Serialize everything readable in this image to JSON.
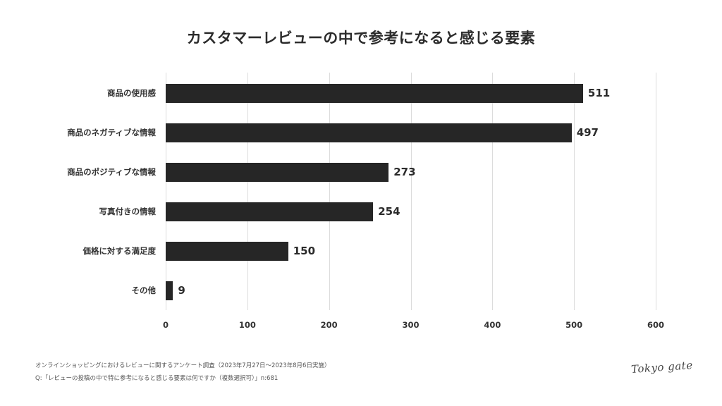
{
  "chart_data": {
    "type": "bar",
    "orientation": "horizontal",
    "title": "カスタマーレビューの中で参考になると感じる要素",
    "categories": [
      "商品の使用感",
      "商品のネガティブな情報",
      "商品のポジティブな情報",
      "写真付きの情報",
      "価格に対する満足度",
      "その他"
    ],
    "values": [
      511,
      497,
      273,
      254,
      150,
      9
    ],
    "value_labels": [
      "511",
      "497",
      "273",
      "254",
      "150",
      "9"
    ],
    "xlabel": "",
    "ylabel": "",
    "xlim": [
      0,
      600
    ],
    "x_ticks": [
      "0",
      "100",
      "200",
      "300",
      "400",
      "500",
      "600"
    ],
    "grid": true,
    "legend": "none",
    "bar_color": "#262626"
  },
  "title": "カスタマーレビューの中で参考になると感じる要素",
  "footnotes": {
    "line1": "オンラインショッピングにおけるレビューに関するアンケート調査（2023年7月27日〜2023年8月6日実施）",
    "line2": "Q:「レビューの投稿の中で特に参考になると感じる要素は何ですか（複数選択可）」n:681"
  },
  "logo": "Tokyo gate"
}
